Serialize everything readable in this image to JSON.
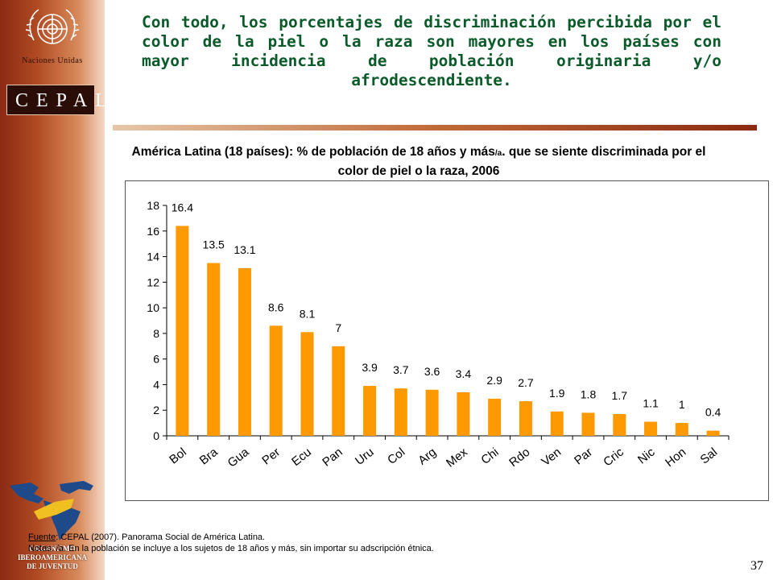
{
  "branding": {
    "un_name": "Naciones Unidas",
    "cepal": "CEPAL",
    "org_lines": [
      "ORGANISMO",
      "IBEROAMERICANA",
      "DE JUVENTUD"
    ]
  },
  "slide": {
    "title": "Con todo, los porcentajes de discriminación percibida por el color de la piel o la raza son mayores en los países con mayor incidencia de población originaria y/o afrodescendiente.",
    "page_number": "37"
  },
  "chart_title": {
    "part1": "América Latina (18 países): % de población de 18 años y más",
    "sup": "/a",
    "part2": ". que se siente discriminada por el color de piel o la raza, 2006"
  },
  "footnotes": {
    "source_label": "Fuente",
    "source_text": ": CEPAL (2007). Panorama Social de América Latina.",
    "notes_text": "Notas: /a. En la población se incluye a los sujetos de 18 años y más, sin importar su adscripción étnica."
  },
  "colors": {
    "bar": "#ff9900",
    "title": "#0a5a2a"
  },
  "chart_data": {
    "type": "bar",
    "categories": [
      "Bol",
      "Bra",
      "Gua",
      "Per",
      "Ecu",
      "Pan",
      "Uru",
      "Col",
      "Arg",
      "Mex",
      "Chi",
      "Rdo",
      "Ven",
      "Par",
      "Cric",
      "Nic",
      "Hon",
      "Sal"
    ],
    "values": [
      16.4,
      13.5,
      13.1,
      8.6,
      8.1,
      7,
      3.9,
      3.7,
      3.6,
      3.4,
      2.9,
      2.7,
      1.9,
      1.8,
      1.7,
      1.1,
      1,
      0.4
    ],
    "value_labels": [
      "16.4",
      "13.5",
      "13.1",
      "8.6",
      "8.1",
      "7",
      "3.9",
      "3.7",
      "3.6",
      "3.4",
      "2.9",
      "2.7",
      "1.9",
      "1.8",
      "1.7",
      "1.1",
      "1",
      "0.4"
    ],
    "yticks": [
      "0",
      "2",
      "4",
      "6",
      "8",
      "10",
      "12",
      "14",
      "16",
      "18"
    ],
    "ylim": [
      0,
      18
    ],
    "grid": false,
    "legend": "none",
    "xlabel": "",
    "ylabel": ""
  }
}
